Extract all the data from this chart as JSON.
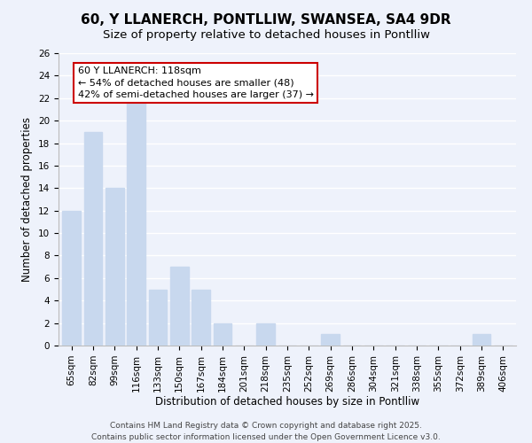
{
  "title": "60, Y LLANERCH, PONTLLIW, SWANSEA, SA4 9DR",
  "subtitle": "Size of property relative to detached houses in Pontlliw",
  "xlabel": "Distribution of detached houses by size in Pontlliw",
  "ylabel": "Number of detached properties",
  "categories": [
    "65sqm",
    "82sqm",
    "99sqm",
    "116sqm",
    "133sqm",
    "150sqm",
    "167sqm",
    "184sqm",
    "201sqm",
    "218sqm",
    "235sqm",
    "252sqm",
    "269sqm",
    "286sqm",
    "304sqm",
    "321sqm",
    "338sqm",
    "355sqm",
    "372sqm",
    "389sqm",
    "406sqm"
  ],
  "values": [
    12,
    19,
    14,
    22,
    5,
    7,
    5,
    2,
    0,
    2,
    0,
    0,
    1,
    0,
    0,
    0,
    0,
    0,
    0,
    1,
    0
  ],
  "bar_color": "#c8d8ee",
  "ylim": [
    0,
    26
  ],
  "yticks": [
    0,
    2,
    4,
    6,
    8,
    10,
    12,
    14,
    16,
    18,
    20,
    22,
    24,
    26
  ],
  "annotation_line1": "60 Y LLANERCH: 118sqm",
  "annotation_line2": "← 54% of detached houses are smaller (48)",
  "annotation_line3": "42% of semi-detached houses are larger (37) →",
  "annotation_box_facecolor": "#ffffff",
  "annotation_box_edgecolor": "#cc0000",
  "footer_line1": "Contains HM Land Registry data © Crown copyright and database right 2025.",
  "footer_line2": "Contains public sector information licensed under the Open Government Licence v3.0.",
  "background_color": "#eef2fb",
  "grid_color": "#ffffff",
  "title_fontsize": 11,
  "subtitle_fontsize": 9.5,
  "axis_label_fontsize": 8.5,
  "tick_fontsize": 7.5,
  "annotation_fontsize": 8,
  "footer_fontsize": 6.5
}
